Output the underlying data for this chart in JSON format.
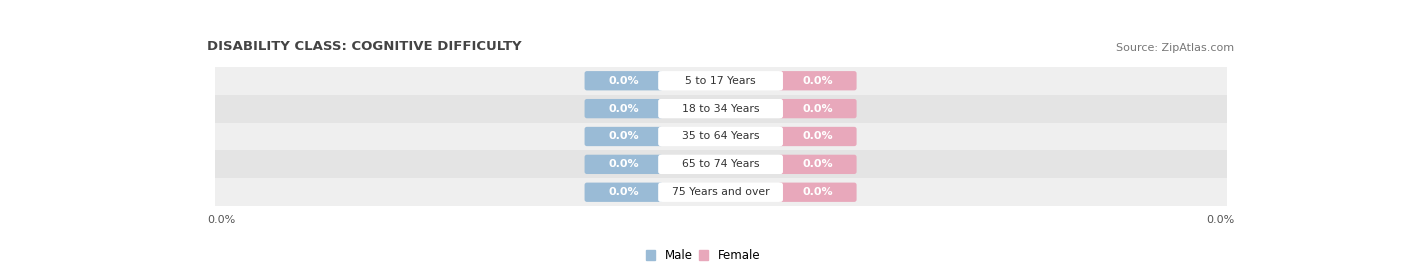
{
  "title": "DISABILITY CLASS: COGNITIVE DIFFICULTY",
  "source": "Source: ZipAtlas.com",
  "categories": [
    "5 to 17 Years",
    "18 to 34 Years",
    "35 to 64 Years",
    "65 to 74 Years",
    "75 Years and over"
  ],
  "male_values": [
    0.0,
    0.0,
    0.0,
    0.0,
    0.0
  ],
  "female_values": [
    0.0,
    0.0,
    0.0,
    0.0,
    0.0
  ],
  "male_color": "#9abbd6",
  "female_color": "#e8a8bb",
  "row_bg_color": "#efefef",
  "row_stripe_color": "#e4e4e4",
  "cat_label_bg": "#ffffff",
  "cat_label_color": "#333333",
  "x_left_label": "0.0%",
  "x_right_label": "0.0%",
  "title_fontsize": 9.5,
  "source_fontsize": 8,
  "legend_male": "Male",
  "legend_female": "Female",
  "bg_color": "#f5f5f5"
}
